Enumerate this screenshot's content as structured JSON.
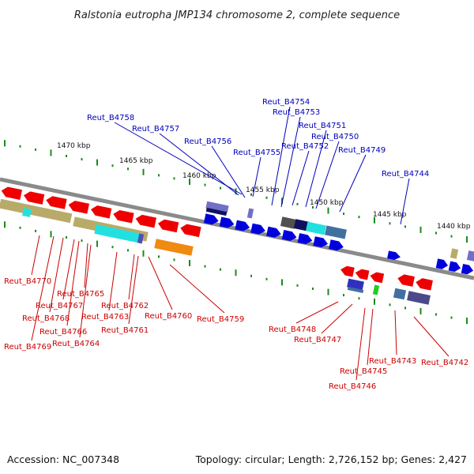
{
  "title": "Ralstonia eutropha JMP134 chromosome 2, complete sequence",
  "footer": {
    "accession": "Accession: NC_007348",
    "summary": "Topology: circular; Length: 2,726,152 bp; Genes: 2,427"
  },
  "colors": {
    "forward_label": "#0000bb",
    "reverse_label": "#cc0000",
    "tick": "#1a8a1a",
    "backbone": "#8a8a8a",
    "forward_gene": "#0000dd",
    "reverse_gene": "#ee0000"
  },
  "kbp_labels": [
    "1470 kbp",
    "1465 kbp",
    "1460 kbp",
    "1455 kbp",
    "1450 kbp",
    "1445 kbp",
    "1440 kbp"
  ],
  "forward_genes": [
    "Reut_B4758",
    "Reut_B4757",
    "Reut_B4756",
    "Reut_B4755",
    "Reut_B4754",
    "Reut_B4753",
    "Reut_B4752",
    "Reut_B4751",
    "Reut_B4750",
    "Reut_B4749",
    "Reut_B4744"
  ],
  "reverse_genes": [
    "Reut_B4770",
    "Reut_B4769",
    "Reut_B4768",
    "Reut_B4767",
    "Reut_B4766",
    "Reut_B4765",
    "Reut_B4764",
    "Reut_B4763",
    "Reut_B4762",
    "Reut_B4761",
    "Reut_B4760",
    "Reut_B4759",
    "Reut_B4748",
    "Reut_B4747",
    "Reut_B4746",
    "Reut_B4745",
    "Reut_B4743",
    "Reut_B4742"
  ]
}
